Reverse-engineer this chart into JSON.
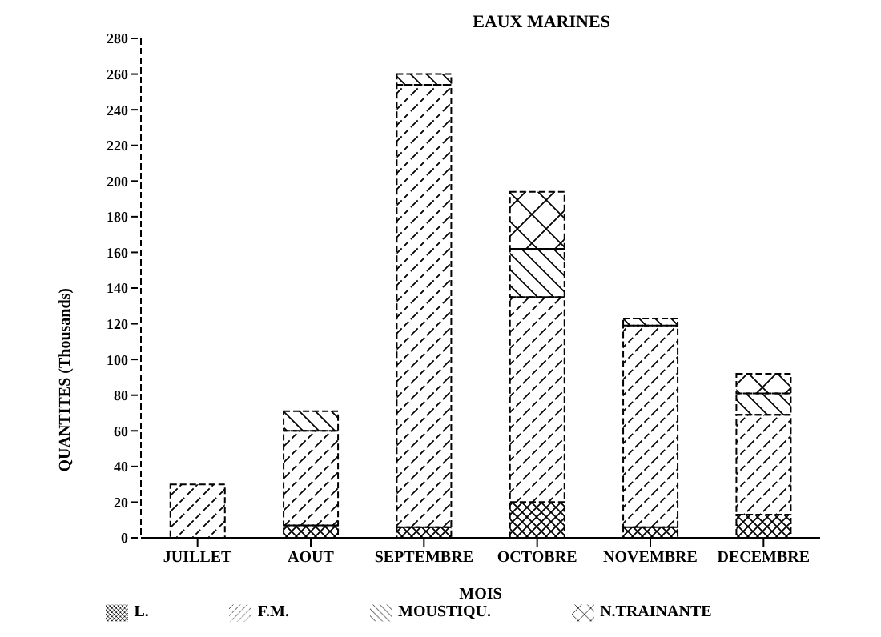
{
  "chart_data": {
    "type": "bar",
    "title": "EAUX MARINES",
    "xlabel": "MOIS",
    "ylabel": "QUANTITES (Thousands)",
    "categories": [
      "JUILLET",
      "AOUT",
      "SEPTEMBRE",
      "OCTOBRE",
      "NOVEMBRE",
      "DECEMBRE"
    ],
    "stacked": true,
    "series": [
      {
        "name": "L.",
        "color": "#000000",
        "values": [
          null,
          7,
          6,
          20,
          6,
          13
        ]
      },
      {
        "name": "F.M.",
        "color": "#000000",
        "values": [
          30,
          53,
          248,
          115,
          113,
          56
        ]
      },
      {
        "name": "MOUSTIQU.",
        "color": "#000000",
        "values": [
          0,
          11,
          6,
          27,
          4,
          12
        ]
      },
      {
        "name": "N.TRAINANTE",
        "color": "#000000",
        "values": [
          0,
          0,
          0,
          32,
          0,
          11
        ]
      }
    ],
    "ylim": [
      0,
      280
    ],
    "yticks": [
      0,
      20,
      40,
      60,
      80,
      100,
      120,
      140,
      160,
      180,
      200,
      220,
      240,
      260,
      280
    ],
    "grid": false,
    "legend": "bottom"
  }
}
